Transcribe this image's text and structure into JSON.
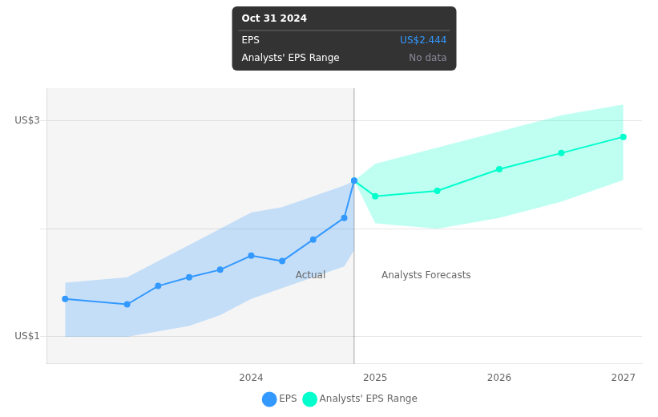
{
  "chart_data": {
    "type": "line",
    "series": [
      {
        "name": "EPS",
        "color": "#3399ff",
        "marker": "o",
        "x": [
          2022.5,
          2023.0,
          2023.25,
          2023.5,
          2023.75,
          2024.0,
          2024.25,
          2024.5,
          2024.75,
          2024.83
        ],
        "values": [
          1.35,
          1.3,
          1.47,
          1.55,
          1.62,
          1.75,
          1.7,
          1.9,
          2.1,
          2.444
        ],
        "band_upper": [
          1.5,
          1.55,
          1.7,
          1.85,
          2.0,
          2.15,
          2.2,
          2.3,
          2.4,
          2.444
        ],
        "band_lower": [
          1.0,
          1.0,
          1.05,
          1.1,
          1.2,
          1.35,
          1.45,
          1.55,
          1.65,
          1.8
        ]
      },
      {
        "name": "Analysts' EPS Range",
        "color": "#00ffcc",
        "marker": "o",
        "x": [
          2024.83,
          2025.0,
          2025.5,
          2026.0,
          2026.5,
          2027.0
        ],
        "values": [
          2.444,
          2.3,
          2.35,
          2.55,
          2.7,
          2.85
        ],
        "band_upper": [
          2.444,
          2.6,
          2.75,
          2.9,
          3.05,
          3.15
        ],
        "band_lower": [
          2.444,
          2.05,
          2.0,
          2.1,
          2.25,
          2.45
        ]
      }
    ],
    "xlim": [
      2022.35,
      2027.15
    ],
    "xticks": [
      2024,
      2025,
      2026,
      2027
    ],
    "ylim": [
      0.75,
      3.3
    ],
    "yticks": [
      1,
      2,
      3
    ],
    "grid": "y",
    "tick_labels": "x",
    "legend": "bottom",
    "annotations": [
      {
        "text": "Actual",
        "x": 2024.6,
        "y": 1.52
      },
      {
        "text": "Analysts Forecasts",
        "x": 2025.05,
        "y": 1.52
      },
      {
        "text": "US$3",
        "y": 3
      },
      {
        "text": "US$1",
        "y": 1
      },
      {
        "text": "Oct 31 2024"
      },
      {
        "text": "EPS"
      },
      {
        "text": "US$2.444",
        "color": "#3399ff"
      },
      {
        "text": "Analysts' EPS Range"
      },
      {
        "text": "No data",
        "color": "#888899"
      }
    ]
  }
}
